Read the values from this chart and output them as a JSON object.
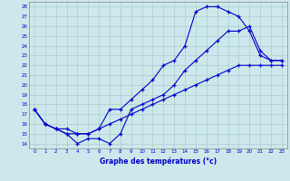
{
  "xlabel": "Graphe des températures (°c)",
  "background_color": "#cce8ec",
  "line_color": "#0000cc",
  "grid_color": "#aacccc",
  "xlim": [
    -0.5,
    23.5
  ],
  "ylim": [
    13.5,
    28.5
  ],
  "xticks": [
    0,
    1,
    2,
    3,
    4,
    5,
    6,
    7,
    8,
    9,
    10,
    11,
    12,
    13,
    14,
    15,
    16,
    17,
    18,
    19,
    20,
    21,
    22,
    23
  ],
  "yticks": [
    14,
    15,
    16,
    17,
    18,
    19,
    20,
    21,
    22,
    23,
    24,
    25,
    26,
    27,
    28
  ],
  "curve1_x": [
    0,
    1,
    2,
    3,
    4,
    5,
    6,
    7,
    8,
    9,
    10,
    11,
    12,
    13,
    14,
    15,
    16,
    17,
    18,
    19,
    20,
    21,
    22,
    23
  ],
  "curve1_y": [
    17.5,
    16.0,
    15.5,
    15.0,
    15.0,
    15.0,
    15.5,
    17.5,
    17.5,
    18.5,
    19.5,
    20.5,
    22.0,
    22.5,
    24.0,
    27.5,
    28.0,
    28.0,
    27.5,
    27.0,
    25.5,
    23.0,
    22.5,
    22.5
  ],
  "curve2_x": [
    0,
    1,
    2,
    3,
    4,
    5,
    6,
    7,
    8,
    9,
    10,
    11,
    12,
    13,
    14,
    15,
    16,
    17,
    18,
    19,
    20,
    21,
    22,
    23
  ],
  "curve2_y": [
    17.5,
    16.0,
    15.5,
    15.0,
    14.0,
    14.5,
    14.5,
    14.0,
    15.0,
    17.5,
    18.0,
    18.5,
    19.0,
    20.0,
    21.5,
    22.5,
    23.5,
    24.5,
    25.5,
    25.5,
    26.0,
    23.5,
    22.5,
    22.5
  ],
  "curve3_x": [
    0,
    1,
    2,
    3,
    4,
    5,
    6,
    7,
    8,
    9,
    10,
    11,
    12,
    13,
    14,
    15,
    16,
    17,
    18,
    19,
    20,
    21,
    22,
    23
  ],
  "curve3_y": [
    17.5,
    16.0,
    15.5,
    15.5,
    15.0,
    15.0,
    15.5,
    16.0,
    16.5,
    17.0,
    17.5,
    18.0,
    18.5,
    19.0,
    19.5,
    20.0,
    20.5,
    21.0,
    21.5,
    22.0,
    22.0,
    22.0,
    22.0,
    22.0
  ]
}
